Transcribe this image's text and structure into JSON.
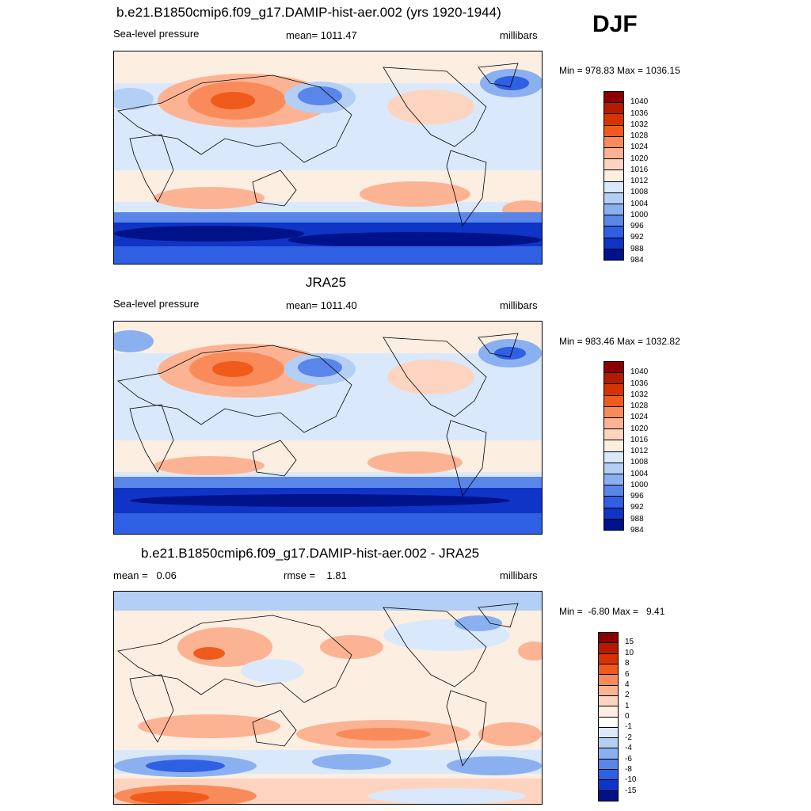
{
  "season": "DJF",
  "panels": [
    {
      "title": "b.e21.B1850cmip6.f09_g17.DAMIP-hist-aer.002 (yrs 1920-1944)",
      "left_label": "Sea-level pressure",
      "center_label": "mean= 1011.47",
      "right_label": "millibars",
      "minmax": "Min = 978.83 Max = 1036.15",
      "colorbar": {
        "labels": [
          "1040",
          "1036",
          "1032",
          "1028",
          "1024",
          "1020",
          "1016",
          "1012",
          "1008",
          "1004",
          "1000",
          "996",
          "992",
          "988",
          "984"
        ],
        "colors": [
          "#8a0000",
          "#b51a00",
          "#d63300",
          "#f05a1a",
          "#f98b5a",
          "#fcb394",
          "#fdd4c0",
          "#fdeee2",
          "#d9e9fb",
          "#b4cff5",
          "#8ab0f0",
          "#5a86ea",
          "#2f5fe3",
          "#1034c6",
          "#00128a"
        ]
      }
    },
    {
      "title": "JRA25",
      "left_label": "Sea-level pressure",
      "center_label": "mean= 1011.40",
      "right_label": "millibars",
      "minmax": "Min = 983.46 Max = 1032.82",
      "colorbar": {
        "labels": [
          "1040",
          "1036",
          "1032",
          "1028",
          "1024",
          "1020",
          "1016",
          "1012",
          "1008",
          "1004",
          "1000",
          "996",
          "992",
          "988",
          "984"
        ],
        "colors": [
          "#8a0000",
          "#b51a00",
          "#d63300",
          "#f05a1a",
          "#f98b5a",
          "#fcb394",
          "#fdd4c0",
          "#fdeee2",
          "#d9e9fb",
          "#b4cff5",
          "#8ab0f0",
          "#5a86ea",
          "#2f5fe3",
          "#1034c6",
          "#00128a"
        ]
      }
    },
    {
      "title": "b.e21.B1850cmip6.f09_g17.DAMIP-hist-aer.002 - JRA25",
      "left_label": "mean =   0.06",
      "center_label": "rmse =    1.81",
      "right_label": "millibars",
      "minmax": "Min =  -6.80 Max =   9.41",
      "colorbar": {
        "labels": [
          "15",
          "10",
          "8",
          "6",
          "4",
          "2",
          "1",
          "0",
          "-1",
          "-2",
          "-4",
          "-6",
          "-8",
          "-10",
          "-15"
        ],
        "colors": [
          "#8a0000",
          "#b51a00",
          "#d63300",
          "#f05a1a",
          "#f98b5a",
          "#fcb394",
          "#fdd4c0",
          "#fdeee2",
          "#ffffff",
          "#d9e9fb",
          "#b4cff5",
          "#8ab0f0",
          "#5a86ea",
          "#2f5fe3",
          "#1034c6",
          "#00128a"
        ]
      }
    }
  ]
}
